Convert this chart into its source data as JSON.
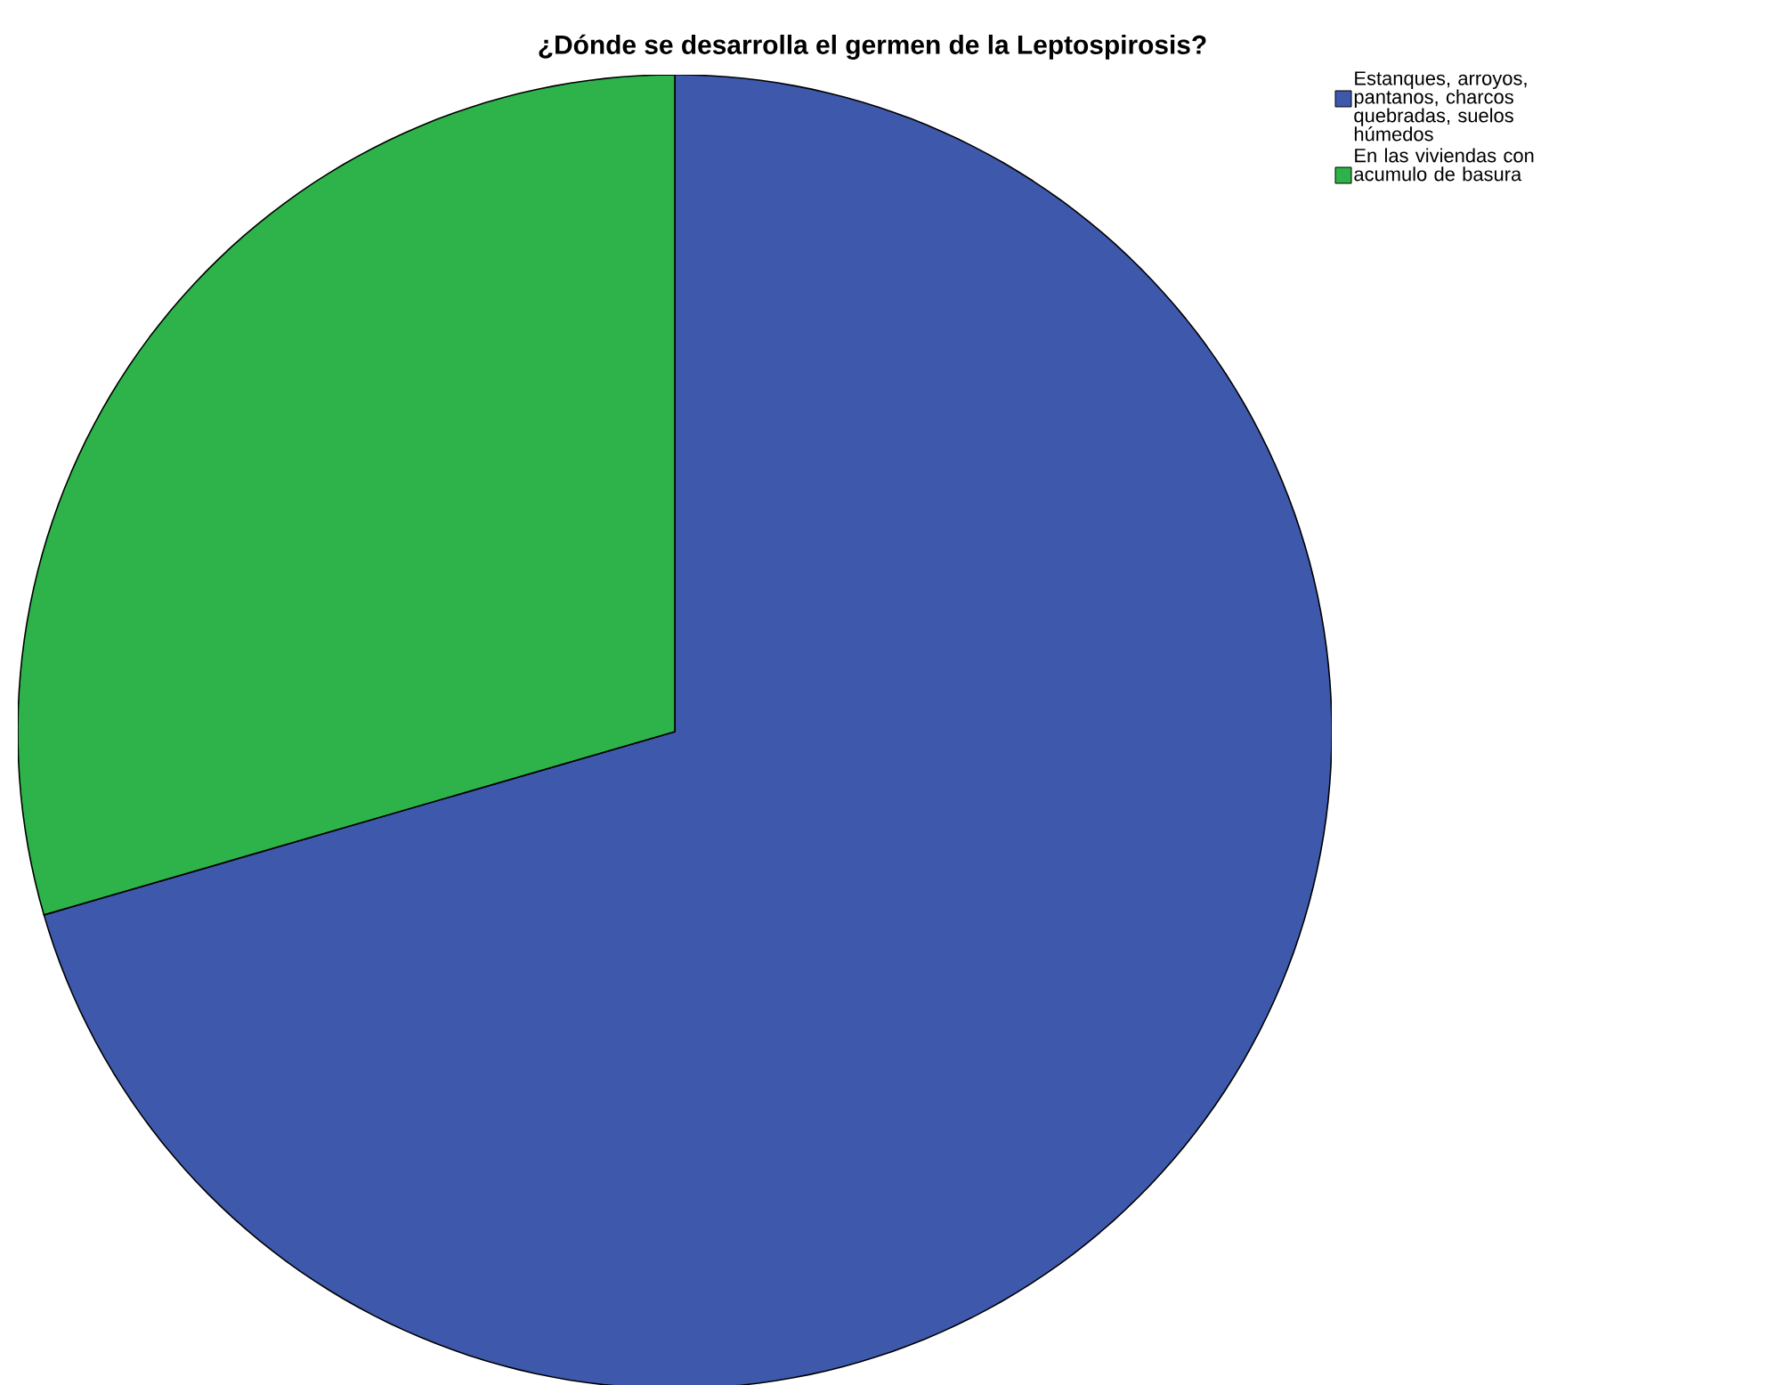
{
  "chart_data": {
    "type": "pie",
    "title": "¿Dónde se desarrolla el germen de la Leptospirosis?",
    "categories": [
      "Estanques, arroyos, pantanos, charcos quebradas, suelos húmedos",
      "En las viviendas con acumulo de basura"
    ],
    "values": [
      70.5,
      29.5
    ],
    "colors": [
      "#3e58ac",
      "#2db34a"
    ],
    "legend": "top right"
  }
}
